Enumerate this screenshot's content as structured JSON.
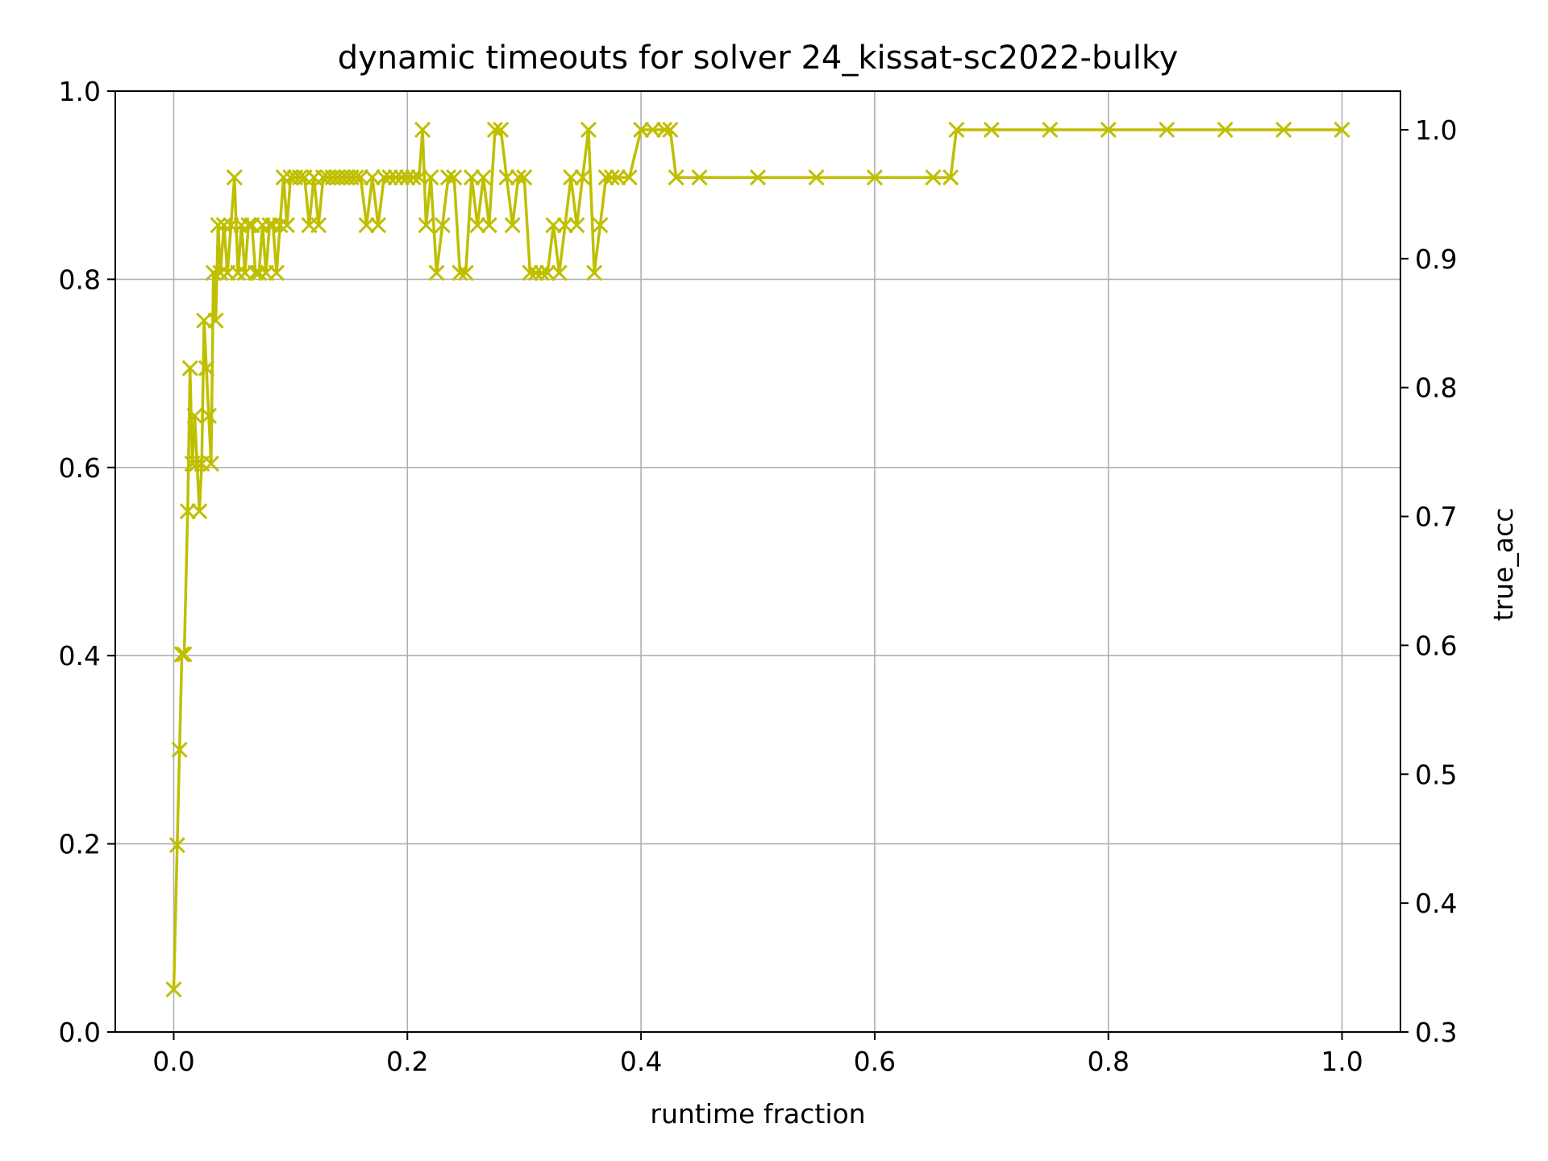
{
  "chart_data": {
    "type": "line",
    "title": "dynamic timeouts for solver 24_kissat-sc2022-bulky",
    "xlabel": "runtime fraction",
    "ylabel": "",
    "y2label": "true_acc",
    "xlim": [
      -0.05,
      1.05
    ],
    "ylim": [
      0.0,
      1.0
    ],
    "y2lim": [
      0.3,
      1.03
    ],
    "xticks": [
      "0.0",
      "0.2",
      "0.4",
      "0.6",
      "0.8",
      "1.0"
    ],
    "yticks": [
      "0.0",
      "0.2",
      "0.4",
      "0.6",
      "0.8",
      "1.0"
    ],
    "y2ticks": [
      "0.3",
      "0.4",
      "0.5",
      "0.6",
      "0.7",
      "0.8",
      "0.9",
      "1.0"
    ],
    "grid": true,
    "axis": "y2",
    "colors": {
      "series": "#bfbf00",
      "y2label": "#ff0000"
    },
    "marker": "x",
    "series": [
      {
        "x": [
          0.0,
          0.003,
          0.005,
          0.007,
          0.009,
          0.012,
          0.014,
          0.016,
          0.018,
          0.02,
          0.022,
          0.024,
          0.026,
          0.028,
          0.03,
          0.032,
          0.034,
          0.036,
          0.038,
          0.04,
          0.043,
          0.046,
          0.049,
          0.052,
          0.055,
          0.058,
          0.061,
          0.064,
          0.067,
          0.07,
          0.073,
          0.076,
          0.079,
          0.082,
          0.085,
          0.088,
          0.091,
          0.094,
          0.097,
          0.1,
          0.104,
          0.108,
          0.112,
          0.116,
          0.12,
          0.124,
          0.128,
          0.132,
          0.136,
          0.14,
          0.144,
          0.148,
          0.152,
          0.156,
          0.16,
          0.165,
          0.17,
          0.175,
          0.18,
          0.185,
          0.19,
          0.195,
          0.2,
          0.205,
          0.21,
          0.213,
          0.216,
          0.22,
          0.225,
          0.23,
          0.235,
          0.24,
          0.245,
          0.25,
          0.255,
          0.26,
          0.265,
          0.27,
          0.275,
          0.28,
          0.285,
          0.29,
          0.295,
          0.3,
          0.305,
          0.31,
          0.315,
          0.32,
          0.325,
          0.33,
          0.335,
          0.34,
          0.345,
          0.35,
          0.355,
          0.36,
          0.365,
          0.37,
          0.375,
          0.38,
          0.39,
          0.4,
          0.41,
          0.42,
          0.425,
          0.43,
          0.45,
          0.5,
          0.55,
          0.6,
          0.65,
          0.665,
          0.67,
          0.7,
          0.75,
          0.8,
          0.85,
          0.9,
          0.95,
          1.0
        ],
        "y": [
          0.333,
          0.445,
          0.519,
          0.593,
          0.593,
          0.704,
          0.815,
          0.741,
          0.778,
          0.741,
          0.704,
          0.741,
          0.852,
          0.815,
          0.778,
          0.741,
          0.889,
          0.852,
          0.926,
          0.889,
          0.926,
          0.889,
          0.926,
          0.963,
          0.889,
          0.926,
          0.889,
          0.926,
          0.926,
          0.889,
          0.889,
          0.926,
          0.889,
          0.926,
          0.926,
          0.889,
          0.926,
          0.963,
          0.926,
          0.963,
          0.963,
          0.963,
          0.963,
          0.926,
          0.963,
          0.926,
          0.963,
          0.963,
          0.963,
          0.963,
          0.963,
          0.963,
          0.963,
          0.963,
          0.963,
          0.926,
          0.963,
          0.926,
          0.963,
          0.963,
          0.963,
          0.963,
          0.963,
          0.963,
          0.963,
          1.0,
          0.926,
          0.963,
          0.889,
          0.926,
          0.963,
          0.963,
          0.889,
          0.889,
          0.963,
          0.926,
          0.963,
          0.926,
          1.0,
          1.0,
          0.963,
          0.926,
          0.963,
          0.963,
          0.889,
          0.889,
          0.889,
          0.889,
          0.926,
          0.889,
          0.926,
          0.963,
          0.926,
          0.963,
          1.0,
          0.889,
          0.926,
          0.963,
          0.963,
          0.963,
          0.963,
          1.0,
          1.0,
          1.0,
          1.0,
          0.963,
          0.963,
          0.963,
          0.963,
          0.963,
          0.963,
          0.963,
          1.0,
          1.0,
          1.0,
          1.0,
          1.0,
          1.0,
          1.0,
          1.0
        ]
      }
    ]
  }
}
